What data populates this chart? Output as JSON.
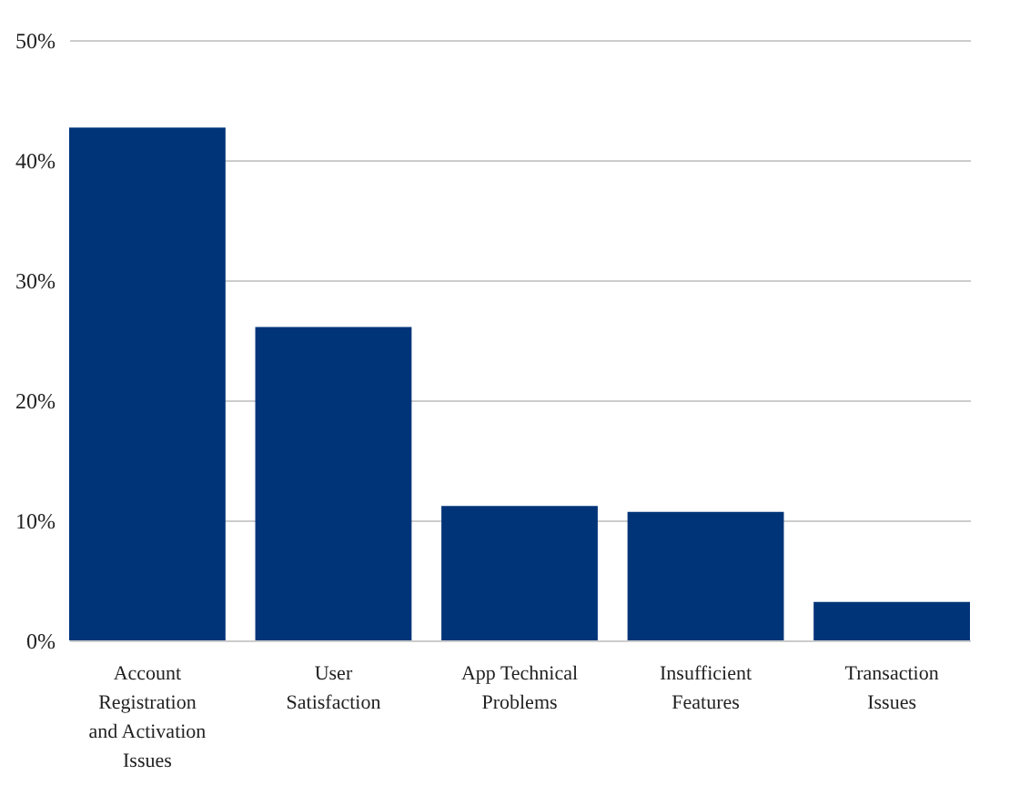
{
  "chart_data": {
    "type": "bar",
    "categories": [
      "Account Registration and Activation Issues",
      "User Satisfaction",
      "App Technical Problems",
      "Insufficient Features",
      "Transaction Issues"
    ],
    "values": [
      42.7,
      26.1,
      11.2,
      10.7,
      3.2
    ],
    "color": "#003478",
    "ylim": [
      0,
      50
    ],
    "yticks": [
      {
        "value": 0,
        "label": "0%"
      },
      {
        "value": 10,
        "label": "10%"
      },
      {
        "value": 20,
        "label": "20%"
      },
      {
        "value": 30,
        "label": "30%"
      },
      {
        "value": 40,
        "label": "40%"
      },
      {
        "value": 50,
        "label": "50%"
      }
    ],
    "grid": "y"
  }
}
